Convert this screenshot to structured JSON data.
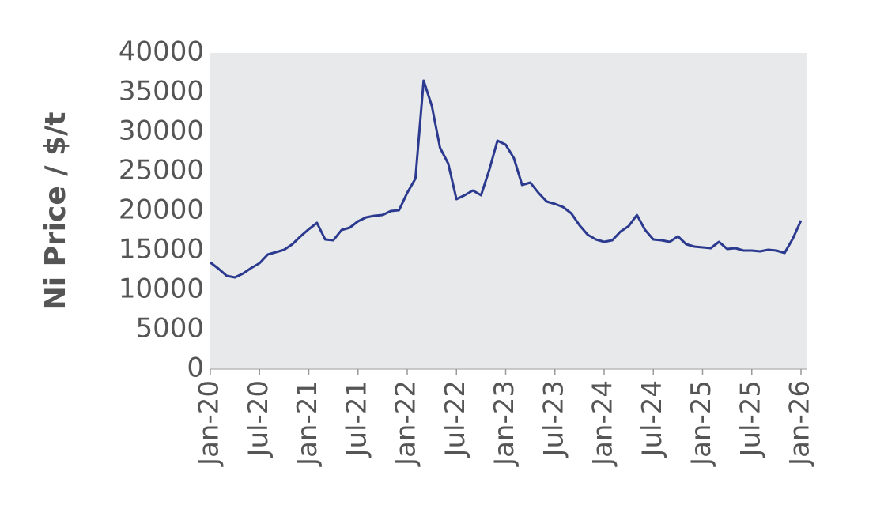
{
  "chart_data": {
    "type": "line",
    "y_label": "Ni Price / $/t",
    "categories": [
      "Jan-20",
      null,
      null,
      null,
      null,
      null,
      "Jul-20",
      null,
      null,
      null,
      null,
      null,
      "Jan-21",
      null,
      null,
      null,
      null,
      null,
      "Jul-21",
      null,
      null,
      null,
      null,
      null,
      "Jan-22",
      null,
      null,
      null,
      null,
      null,
      "Jul-22",
      null,
      null,
      null,
      null,
      null,
      "Jan-23",
      null,
      null,
      null,
      null,
      null,
      "Jul-23",
      null,
      null,
      null,
      null,
      null,
      "Jan-24",
      null,
      null,
      null,
      null,
      null,
      "Jul-24",
      null,
      null,
      null,
      null,
      null,
      "Jan-25",
      null,
      null,
      null,
      null,
      null,
      "Jul-25",
      null,
      null,
      null,
      null,
      null,
      "Jan-26"
    ],
    "series": [
      {
        "color": "#2b3a8f",
        "values": [
          13500,
          12700,
          11800,
          11600,
          12100,
          12800,
          13400,
          14500,
          14800,
          15100,
          15800,
          16800,
          17700,
          18500,
          16400,
          16300,
          17600,
          17900,
          18700,
          19200,
          19400,
          19500,
          20000,
          20100,
          22300,
          24100,
          36500,
          33300,
          28000,
          26000,
          21500,
          22000,
          22600,
          22000,
          25200,
          28900,
          28400,
          26700,
          23300,
          23600,
          22300,
          21200,
          20900,
          20500,
          19700,
          18200,
          17000,
          16400,
          16100,
          16300,
          17400,
          18100,
          19500,
          17600,
          16400,
          16300,
          16100,
          16800,
          15800,
          15500,
          15400,
          15300,
          16100,
          15200,
          15300,
          15000,
          15000,
          14900,
          15100,
          15000,
          14700,
          16500,
          18800
        ]
      }
    ],
    "ylim": [
      0,
      40000
    ],
    "yticks": [
      0,
      5000,
      10000,
      15000,
      20000,
      25000,
      30000,
      35000,
      40000
    ],
    "plot_background": "#e8e9ea"
  }
}
